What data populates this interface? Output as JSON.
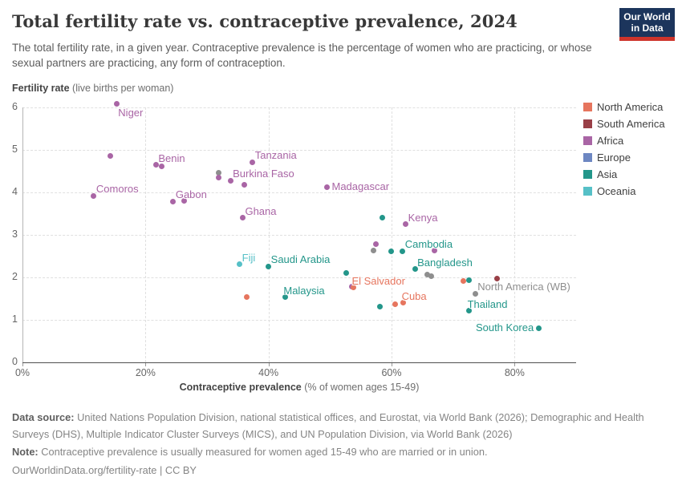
{
  "header": {
    "title": "Total fertility rate vs. contraceptive prevalence, 2024",
    "subtitle": "The total fertility rate, in a given year. Contraceptive prevalence is the percentage of women who are practicing, or whose sexual partners are practicing, any form of contraception.",
    "logo": {
      "line1": "Our World",
      "line2": "in Data",
      "bg_color": "#1c355c",
      "stripe_color": "#ce342b"
    }
  },
  "chart_data": {
    "type": "scatter",
    "title": "Total fertility rate vs. contraceptive prevalence, 2024",
    "xlabel": "Contraceptive prevalence",
    "xlabel_units": " (% of women ages 15-49)",
    "ylabel": "Fertility rate",
    "ylabel_units": " (live births per woman)",
    "xlim": [
      0,
      90
    ],
    "ylim": [
      0,
      6
    ],
    "grid": true,
    "legend_position": "right",
    "x_ticks": [
      {
        "value": 0,
        "label": "0%"
      },
      {
        "value": 20,
        "label": "20%"
      },
      {
        "value": 40,
        "label": "40%"
      },
      {
        "value": 60,
        "label": "60%"
      },
      {
        "value": 80,
        "label": "80%"
      }
    ],
    "y_ticks": [
      {
        "value": 0,
        "label": "0"
      },
      {
        "value": 1,
        "label": "1"
      },
      {
        "value": 2,
        "label": "2"
      },
      {
        "value": 3,
        "label": "3"
      },
      {
        "value": 4,
        "label": "4"
      },
      {
        "value": 5,
        "label": "5"
      },
      {
        "value": 6,
        "label": "6"
      }
    ],
    "legend": [
      {
        "name": "North America",
        "color": "#e6755e"
      },
      {
        "name": "South America",
        "color": "#993f47"
      },
      {
        "name": "Africa",
        "color": "#a965a5"
      },
      {
        "name": "Europe",
        "color": "#6d87c2"
      },
      {
        "name": "Asia",
        "color": "#23968a"
      },
      {
        "name": "Oceania",
        "color": "#56c0c7"
      }
    ],
    "aggregate_color": "#8e8e8e",
    "points": [
      {
        "x": 15.3,
        "y": 6.08,
        "group": "Africa",
        "label": "Niger",
        "anchor": "below-right"
      },
      {
        "x": 14.3,
        "y": 4.86,
        "group": "Africa"
      },
      {
        "x": 21.7,
        "y": 4.65,
        "group": "Africa",
        "label": "Benin",
        "anchor": "above-right"
      },
      {
        "x": 22.6,
        "y": 4.61,
        "group": "Africa"
      },
      {
        "x": 37.4,
        "y": 4.71,
        "group": "Africa",
        "label": "Tanzania",
        "anchor": "above-right"
      },
      {
        "x": 31.9,
        "y": 4.46,
        "group": "aggregate"
      },
      {
        "x": 31.9,
        "y": 4.34,
        "group": "Africa"
      },
      {
        "x": 33.8,
        "y": 4.28,
        "group": "Africa",
        "label": "Burkina Faso",
        "anchor": "above-right"
      },
      {
        "x": 36.1,
        "y": 4.17,
        "group": "Africa"
      },
      {
        "x": 11.6,
        "y": 3.92,
        "group": "Africa",
        "label": "Comoros",
        "anchor": "above-right"
      },
      {
        "x": 24.5,
        "y": 3.79,
        "group": "Africa",
        "label": "Gabon",
        "anchor": "above-right"
      },
      {
        "x": 26.3,
        "y": 3.81,
        "group": "Africa"
      },
      {
        "x": 49.5,
        "y": 4.13,
        "group": "Africa",
        "label": "Madagascar",
        "anchor": "right"
      },
      {
        "x": 35.8,
        "y": 3.4,
        "group": "Africa",
        "label": "Ghana",
        "anchor": "above-right"
      },
      {
        "x": 58.5,
        "y": 3.4,
        "group": "Asia"
      },
      {
        "x": 62.3,
        "y": 3.25,
        "group": "Africa",
        "label": "Kenya",
        "anchor": "above-right"
      },
      {
        "x": 57.4,
        "y": 2.79,
        "group": "Africa"
      },
      {
        "x": 57.0,
        "y": 2.63,
        "group": "aggregate"
      },
      {
        "x": 59.9,
        "y": 2.62,
        "group": "Asia"
      },
      {
        "x": 61.8,
        "y": 2.62,
        "group": "Asia",
        "label": "Cambodia",
        "anchor": "above-right"
      },
      {
        "x": 67.0,
        "y": 2.64,
        "group": "Africa"
      },
      {
        "x": 35.3,
        "y": 2.31,
        "group": "Oceania",
        "label": "Fiji",
        "anchor": "above-right"
      },
      {
        "x": 40.0,
        "y": 2.26,
        "group": "Asia",
        "label": "Saudi Arabia",
        "anchor": "above-right"
      },
      {
        "x": 52.6,
        "y": 2.11,
        "group": "Asia"
      },
      {
        "x": 63.8,
        "y": 2.19,
        "group": "Asia",
        "label": "Bangladesh",
        "anchor": "above-right"
      },
      {
        "x": 65.8,
        "y": 2.06,
        "group": "aggregate"
      },
      {
        "x": 66.4,
        "y": 2.02,
        "group": "aggregate"
      },
      {
        "x": 53.5,
        "y": 1.79,
        "group": "Africa"
      },
      {
        "x": 53.8,
        "y": 1.76,
        "group": "North America",
        "label": "El Salvador",
        "anchor": "above"
      },
      {
        "x": 71.7,
        "y": 1.91,
        "group": "North America"
      },
      {
        "x": 72.6,
        "y": 1.94,
        "group": "Asia"
      },
      {
        "x": 77.2,
        "y": 1.97,
        "group": "South America"
      },
      {
        "x": 73.6,
        "y": 1.62,
        "group": "aggregate",
        "label": "North America (WB)",
        "anchor": "above-right"
      },
      {
        "x": 36.5,
        "y": 1.53,
        "group": "North America"
      },
      {
        "x": 42.7,
        "y": 1.53,
        "group": "Asia",
        "label": "Malaysia",
        "anchor": "above"
      },
      {
        "x": 58.1,
        "y": 1.31,
        "group": "Asia"
      },
      {
        "x": 60.6,
        "y": 1.36,
        "group": "North America"
      },
      {
        "x": 61.9,
        "y": 1.4,
        "group": "North America",
        "label": "Cuba",
        "anchor": "above"
      },
      {
        "x": 72.6,
        "y": 1.21,
        "group": "Asia",
        "label": "Thailand",
        "anchor": "above"
      },
      {
        "x": 83.9,
        "y": 0.81,
        "group": "Asia",
        "label": "South Korea",
        "anchor": "left"
      }
    ]
  },
  "footer": {
    "datasource_label": "Data source:",
    "datasource_text": " United Nations Population Division, national statistical offices, and Eurostat, via World Bank (2026); Demographic and Health Surveys (DHS), Multiple Indicator Cluster Surveys (MICS), and UN Population Division, via World Bank (2026)",
    "note_label": "Note:",
    "note_text": " Contraceptive prevalence is usually measured for women aged 15-49 who are married or in union.",
    "url_line": "OurWorldinData.org/fertility-rate | CC BY"
  }
}
